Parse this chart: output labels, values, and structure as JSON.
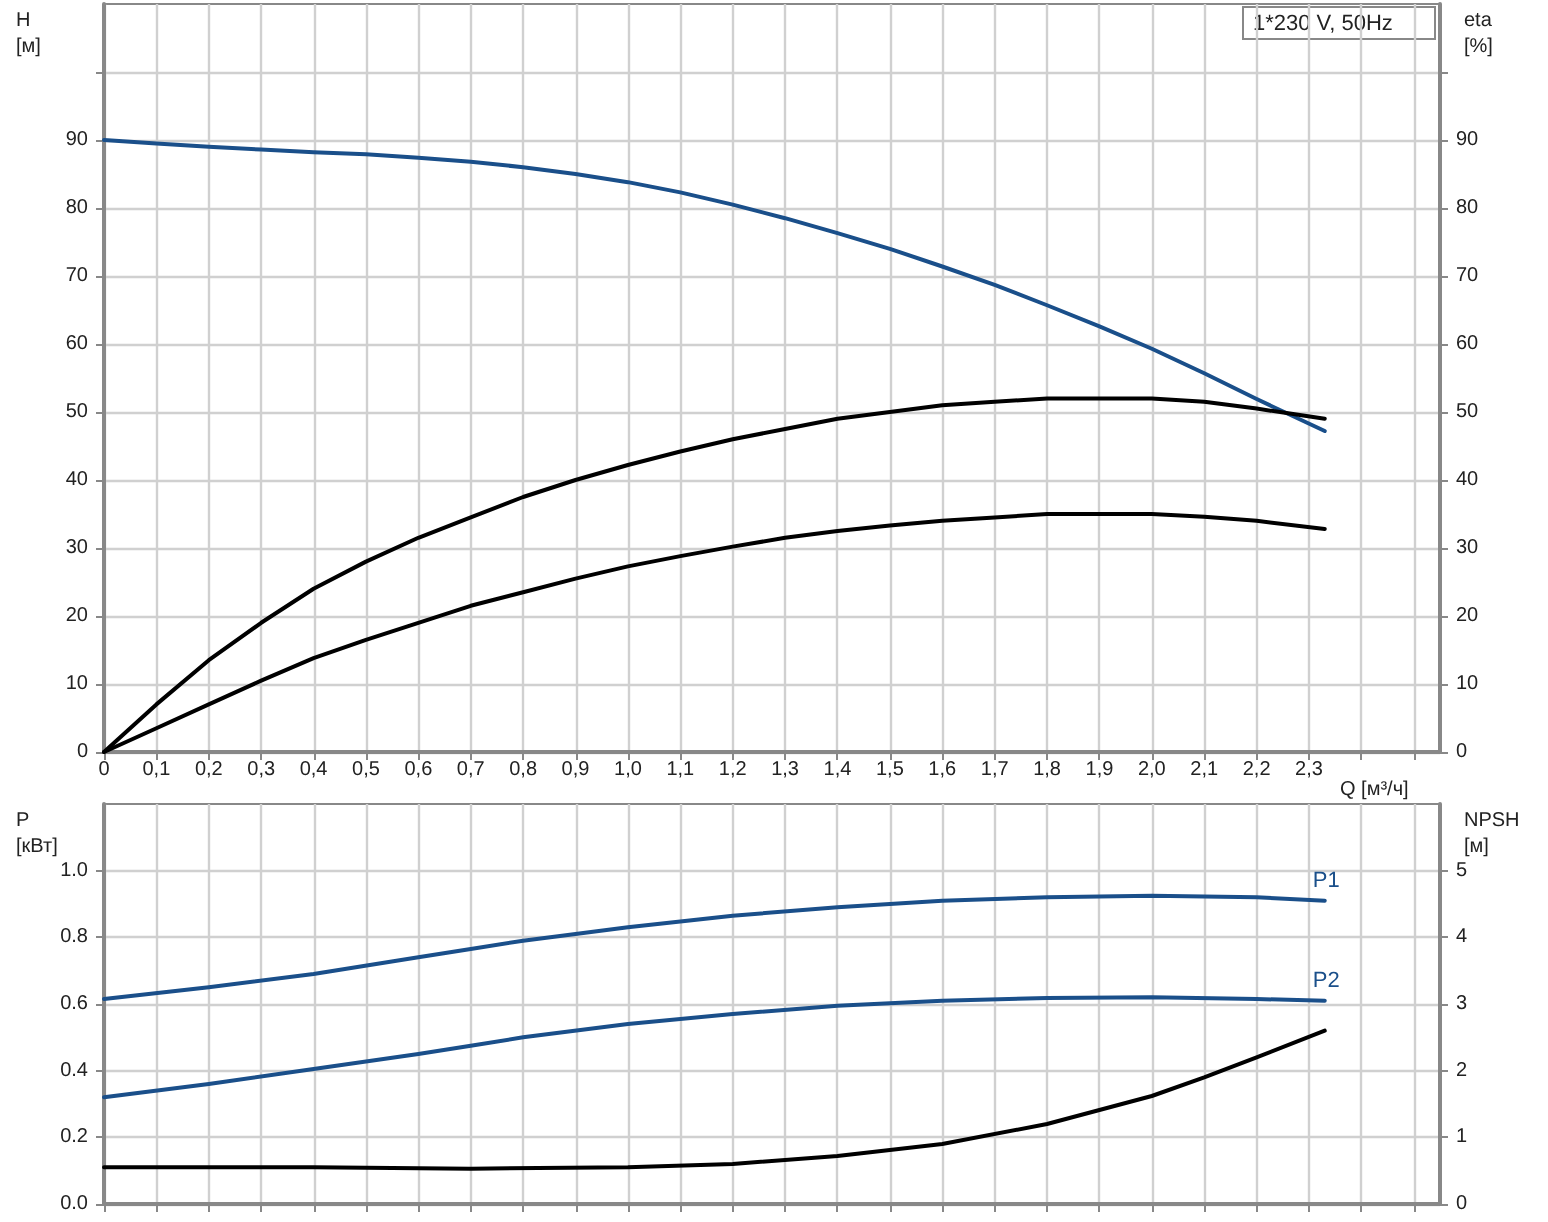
{
  "chart_data": [
    {
      "type": "line",
      "xlabel": "Q [м³/ч]",
      "ylabel": "H [м]",
      "y2label": "eta [%]",
      "annotations": [
        "1*230 V, 50Hz"
      ],
      "grid": true,
      "legend": false,
      "marker": "none",
      "line_style": "solid",
      "xlim": [
        0,
        2.55
      ],
      "xticks": [
        0,
        {
          "value": 0.1,
          "label": "0,1"
        },
        {
          "value": 0.2,
          "label": "0,2"
        },
        {
          "value": 0.3,
          "label": "0,3"
        },
        {
          "value": 0.4,
          "label": "0,4"
        },
        {
          "value": 0.5,
          "label": "0,5"
        },
        {
          "value": 0.6,
          "label": "0,6"
        },
        {
          "value": 0.7,
          "label": "0,7"
        },
        {
          "value": 0.8,
          "label": "0,8"
        },
        {
          "value": 0.9,
          "label": "0,9"
        },
        {
          "value": 1.0,
          "label": "1,0"
        },
        {
          "value": 1.1,
          "label": "1,1"
        },
        {
          "value": 1.2,
          "label": "1,2"
        },
        {
          "value": 1.3,
          "label": "1,3"
        },
        {
          "value": 1.4,
          "label": "1,4"
        },
        {
          "value": 1.5,
          "label": "1,5"
        },
        {
          "value": 1.6,
          "label": "1,6"
        },
        {
          "value": 1.7,
          "label": "1,7"
        },
        {
          "value": 1.8,
          "label": "1,8"
        },
        {
          "value": 1.9,
          "label": "1,9"
        },
        {
          "value": 2.0,
          "label": "2,0"
        },
        {
          "value": 2.1,
          "label": "2,1"
        },
        {
          "value": 2.2,
          "label": "2,2"
        },
        {
          "value": 2.3,
          "label": "2,3"
        },
        {
          "value": 2.4,
          "label": null
        },
        {
          "value": 2.5,
          "label": null
        }
      ],
      "ylim": [
        0,
        110
      ],
      "yticks": [
        0,
        10,
        20,
        30,
        40,
        50,
        60,
        70,
        80,
        90,
        {
          "value": 100,
          "label": null
        }
      ],
      "y2lim": [
        0,
        110
      ],
      "y2ticks": [
        0,
        10,
        20,
        30,
        40,
        50,
        60,
        70,
        80,
        90,
        {
          "value": 100,
          "label": null
        }
      ],
      "series": [
        {
          "color": "#1a4f8a",
          "x": [
            0,
            0.1,
            0.2,
            0.3,
            0.4,
            0.5,
            0.6,
            0.7,
            0.8,
            0.9,
            1.0,
            1.1,
            1.2,
            1.3,
            1.4,
            1.5,
            1.6,
            1.7,
            1.8,
            1.9,
            2.0,
            2.1,
            2.2,
            2.33
          ],
          "values": [
            90,
            89.5,
            89,
            88.6,
            88.2,
            87.9,
            87.4,
            86.8,
            86,
            85,
            83.8,
            82.3,
            80.5,
            78.5,
            76.3,
            74,
            71.4,
            68.7,
            65.7,
            62.6,
            59.3,
            55.7,
            51.9,
            47.2
          ]
        },
        {
          "color": "#000000",
          "axis": "y2",
          "x": [
            0,
            0.1,
            0.2,
            0.3,
            0.4,
            0.5,
            0.6,
            0.7,
            0.8,
            0.9,
            1.0,
            1.1,
            1.2,
            1.3,
            1.4,
            1.5,
            1.6,
            1.7,
            1.8,
            1.9,
            2.0,
            2.1,
            2.2,
            2.33
          ],
          "values": [
            0,
            7,
            13.5,
            19,
            24,
            28,
            31.5,
            34.5,
            37.5,
            40,
            42.2,
            44.2,
            46,
            47.5,
            49,
            50,
            51,
            51.5,
            52,
            52,
            52,
            51.5,
            50.5,
            49
          ]
        },
        {
          "color": "#000000",
          "axis": "y2",
          "x": [
            0,
            0.1,
            0.2,
            0.3,
            0.4,
            0.5,
            0.6,
            0.7,
            0.8,
            0.9,
            1.0,
            1.1,
            1.2,
            1.3,
            1.4,
            1.5,
            1.6,
            1.7,
            1.8,
            1.9,
            2.0,
            2.1,
            2.2,
            2.33
          ],
          "values": [
            0,
            3.5,
            7,
            10.5,
            13.8,
            16.5,
            19,
            21.5,
            23.5,
            25.5,
            27.3,
            28.8,
            30.2,
            31.5,
            32.5,
            33.3,
            34,
            34.5,
            35,
            35,
            35,
            34.6,
            34,
            32.8
          ]
        }
      ]
    },
    {
      "type": "line",
      "ylabel": "P [кВт]",
      "y2label": "NPSH [м]",
      "grid": true,
      "legend": false,
      "marker": "none",
      "line_style": "solid",
      "tick_labels": "y",
      "xlim": [
        0,
        2.55
      ],
      "xticks": [
        0,
        0.1,
        0.2,
        0.3,
        0.4,
        0.5,
        0.6,
        0.7,
        0.8,
        0.9,
        1.0,
        1.1,
        1.2,
        1.3,
        1.4,
        1.5,
        1.6,
        1.7,
        1.8,
        1.9,
        2.0,
        2.1,
        2.2,
        2.3,
        2.4,
        2.5
      ],
      "ylim": [
        0,
        1.2
      ],
      "yticks": [
        {
          "value": 0,
          "label": "0.0"
        },
        0.2,
        0.4,
        0.6,
        0.8,
        {
          "value": 1,
          "label": "1.0"
        }
      ],
      "y2lim": [
        0,
        6
      ],
      "y2ticks": [
        0,
        1,
        2,
        3,
        4,
        5
      ],
      "series": [
        {
          "name": "P1",
          "color": "#1a4f8a",
          "x": [
            0,
            0.2,
            0.4,
            0.6,
            0.7,
            0.8,
            1.0,
            1.2,
            1.4,
            1.6,
            1.8,
            2.0,
            2.2,
            2.33
          ],
          "values": [
            0.615,
            0.65,
            0.69,
            0.74,
            0.765,
            0.79,
            0.83,
            0.865,
            0.89,
            0.91,
            0.92,
            0.925,
            0.92,
            0.91
          ]
        },
        {
          "name": "P2",
          "color": "#1a4f8a",
          "x": [
            0,
            0.2,
            0.4,
            0.6,
            0.7,
            0.8,
            1.0,
            1.2,
            1.4,
            1.6,
            1.8,
            2.0,
            2.2,
            2.33
          ],
          "values": [
            0.32,
            0.36,
            0.405,
            0.45,
            0.475,
            0.5,
            0.54,
            0.57,
            0.595,
            0.61,
            0.618,
            0.62,
            0.615,
            0.61
          ]
        },
        {
          "color": "#000000",
          "axis": "y2",
          "x": [
            0,
            0.4,
            0.7,
            1.0,
            1.2,
            1.4,
            1.6,
            1.8,
            2.0,
            2.1,
            2.2,
            2.33
          ],
          "values": [
            0.55,
            0.55,
            0.53,
            0.55,
            0.6,
            0.72,
            0.9,
            1.2,
            1.62,
            1.9,
            2.2,
            2.6
          ]
        }
      ]
    }
  ]
}
